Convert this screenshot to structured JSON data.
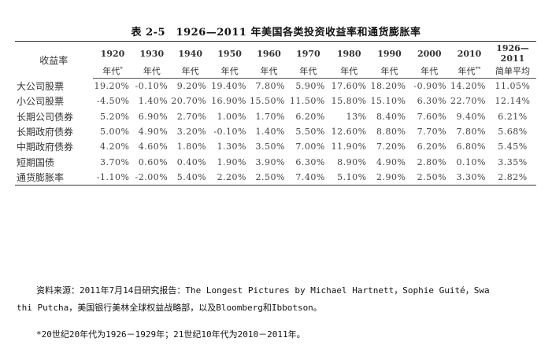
{
  "title": "表 2-5　1926—2011 年美国各类投资收益率和通货膨胀率",
  "header": {
    "label": "收益率",
    "decades": [
      {
        "year": "1920",
        "sub": "年代",
        "mark": "*"
      },
      {
        "year": "1930",
        "sub": "年代",
        "mark": ""
      },
      {
        "year": "1940",
        "sub": "年代",
        "mark": ""
      },
      {
        "year": "1950",
        "sub": "年代",
        "mark": ""
      },
      {
        "year": "1960",
        "sub": "年代",
        "mark": ""
      },
      {
        "year": "1970",
        "sub": "年代",
        "mark": ""
      },
      {
        "year": "1980",
        "sub": "年代",
        "mark": ""
      },
      {
        "year": "1990",
        "sub": "年代",
        "mark": ""
      },
      {
        "year": "2000",
        "sub": "年代",
        "mark": ""
      },
      {
        "year": "2010",
        "sub": "年代",
        "mark": "**"
      }
    ],
    "avg_year": "1926—2011",
    "avg_sub": "简单平均"
  },
  "rows": [
    {
      "label": "大公司股票",
      "values": [
        "19.20%",
        "-0.10%",
        "9.20%",
        "19.40%",
        "7.80%",
        "5.90%",
        "17.60%",
        "18.20%",
        "-0.90%",
        "14.20%"
      ],
      "avg": "11.05%"
    },
    {
      "label": "小公司股票",
      "values": [
        "-4.50%",
        "1.40%",
        "20.70%",
        "16.90%",
        "15.50%",
        "11.50%",
        "15.80%",
        "15.10%",
        "6.30%",
        "22.70%"
      ],
      "avg": "12.14%"
    },
    {
      "label": "长期公司债券",
      "values": [
        "5.20%",
        "6.90%",
        "2.70%",
        "1.00%",
        "1.70%",
        "6.20%",
        "13%",
        "8.40%",
        "7.60%",
        "9.40%"
      ],
      "avg": "6.21%"
    },
    {
      "label": "长期政府债券",
      "values": [
        "5.00%",
        "4.90%",
        "3.20%",
        "-0.10%",
        "1.40%",
        "5.50%",
        "12.60%",
        "8.80%",
        "7.70%",
        "7.80%"
      ],
      "avg": "5.68%"
    },
    {
      "label": "中期政府债券",
      "values": [
        "4.20%",
        "4.60%",
        "1.80%",
        "1.30%",
        "3.50%",
        "7.00%",
        "11.90%",
        "7.20%",
        "6.20%",
        "6.80%"
      ],
      "avg": "5.45%"
    },
    {
      "label": "短期国债",
      "values": [
        "3.70%",
        "0.60%",
        "0.40%",
        "1.90%",
        "3.90%",
        "6.30%",
        "8.90%",
        "4.90%",
        "2.80%",
        "0.10%"
      ],
      "avg": "3.35%"
    },
    {
      "label": "通货膨胀率",
      "values": [
        "-1.10%",
        "-2.00%",
        "5.40%",
        "2.20%",
        "2.50%",
        "7.40%",
        "5.10%",
        "2.90%",
        "2.50%",
        "3.30%"
      ],
      "avg": "2.82%"
    }
  ],
  "footnotes": {
    "source_line1": "资料来源：2011年7月14日研究报告：The Longest Pictures by Michael Hartnett，Sophie Guité，Swa",
    "source_line2": "thi Putcha，美国银行美林全球权益战略部，以及Bloomberg和Ibbotson。",
    "note": "*20世纪20年代为1926－1929年；21世纪10年代为2010－2011年。"
  }
}
